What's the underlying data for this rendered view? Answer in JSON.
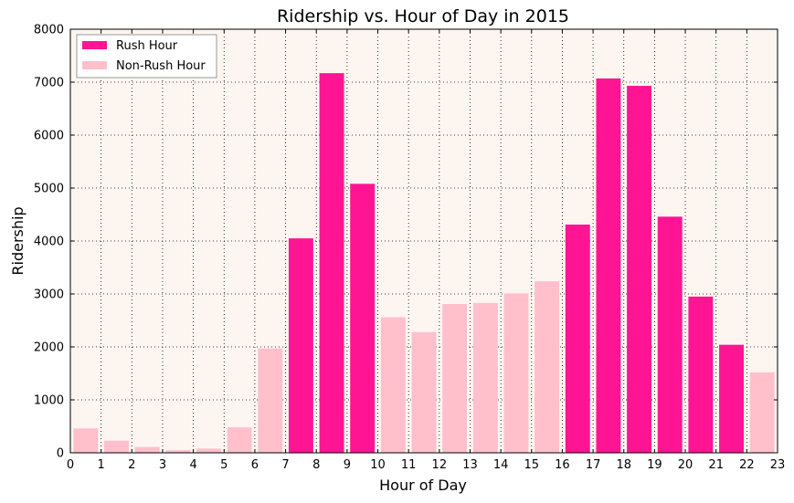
{
  "chart_data": {
    "type": "bar",
    "title": "Ridership vs. Hour of Day in 2015",
    "xlabel": "Hour of Day",
    "ylabel": "Ridership",
    "xlim": [
      0,
      23
    ],
    "ylim": [
      0,
      8000
    ],
    "yticks": [
      0,
      1000,
      2000,
      3000,
      4000,
      5000,
      6000,
      7000,
      8000
    ],
    "xticks": [
      0,
      1,
      2,
      3,
      4,
      5,
      6,
      7,
      8,
      9,
      10,
      11,
      12,
      13,
      14,
      15,
      16,
      17,
      18,
      19,
      20,
      21,
      22,
      23
    ],
    "grid": true,
    "legend_position": "top-left",
    "background_color": "#fdf6f0",
    "series": [
      {
        "name": "Rush Hour",
        "color": "#ff1493",
        "points": [
          {
            "x": 7,
            "y": 4050
          },
          {
            "x": 8,
            "y": 7170
          },
          {
            "x": 9,
            "y": 5080
          },
          {
            "x": 16,
            "y": 4310
          },
          {
            "x": 17,
            "y": 7070
          },
          {
            "x": 18,
            "y": 6930
          },
          {
            "x": 19,
            "y": 4460
          },
          {
            "x": 20,
            "y": 2950
          },
          {
            "x": 21,
            "y": 2040
          }
        ]
      },
      {
        "name": "Non-Rush Hour",
        "color": "#ffc0cb",
        "points": [
          {
            "x": 0,
            "y": 460
          },
          {
            "x": 1,
            "y": 230
          },
          {
            "x": 2,
            "y": 110
          },
          {
            "x": 3,
            "y": 50
          },
          {
            "x": 4,
            "y": 80
          },
          {
            "x": 5,
            "y": 480
          },
          {
            "x": 6,
            "y": 1970
          },
          {
            "x": 10,
            "y": 2560
          },
          {
            "x": 11,
            "y": 2280
          },
          {
            "x": 12,
            "y": 2810
          },
          {
            "x": 13,
            "y": 2830
          },
          {
            "x": 14,
            "y": 3010
          },
          {
            "x": 15,
            "y": 3240
          },
          {
            "x": 22,
            "y": 1520
          }
        ]
      }
    ]
  }
}
